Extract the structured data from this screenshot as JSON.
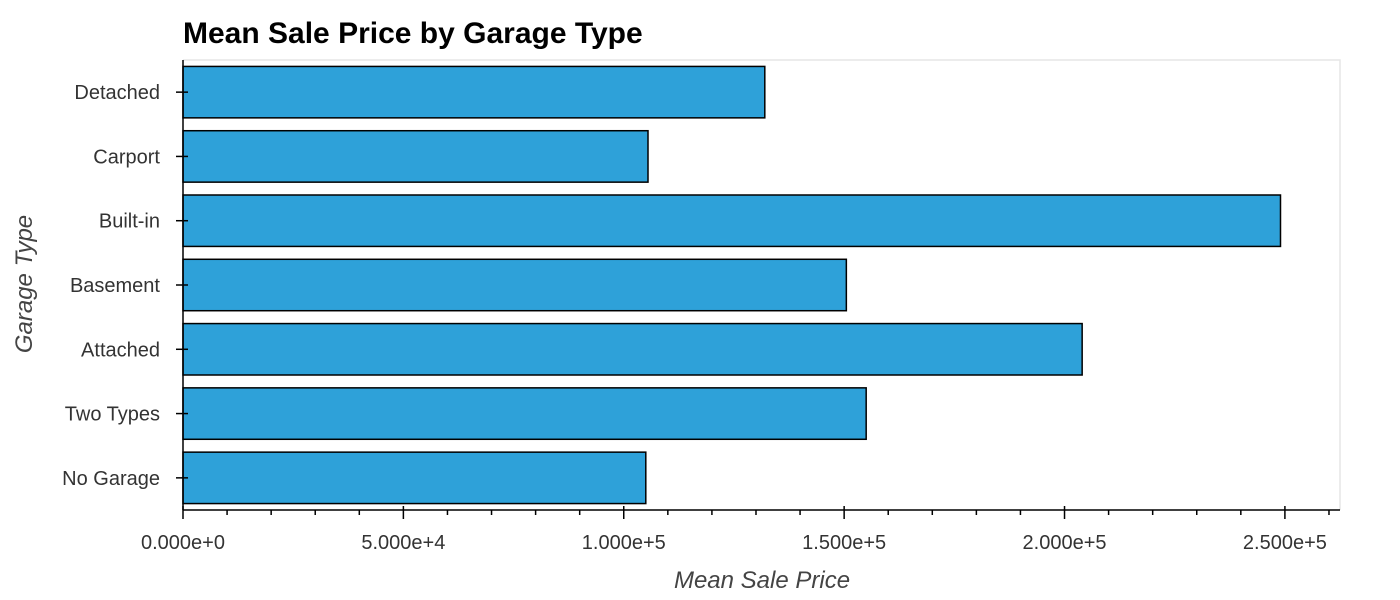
{
  "chart_data": {
    "type": "bar",
    "orientation": "horizontal",
    "title": "Mean Sale Price by Garage Type",
    "xlabel": "Mean Sale Price",
    "ylabel": "Garage Type",
    "categories": [
      "No Garage",
      "Two Types",
      "Attached",
      "Basement",
      "Built-in",
      "Carport",
      "Detached"
    ],
    "values": [
      105000,
      155000,
      204000,
      150500,
      249000,
      105500,
      132000
    ],
    "xlim": [
      0,
      262500
    ],
    "xticks": [
      0,
      50000,
      100000,
      150000,
      200000,
      250000
    ],
    "xtick_labels": [
      "0.000e+0",
      "5.000e+4",
      "1.000e+5",
      "1.500e+5",
      "2.000e+5",
      "2.500e+5"
    ],
    "minor_tick_step": 10000,
    "bar_color": "#2ea1d9",
    "bar_edge_color": "#000000",
    "grid": false,
    "legend": false
  }
}
